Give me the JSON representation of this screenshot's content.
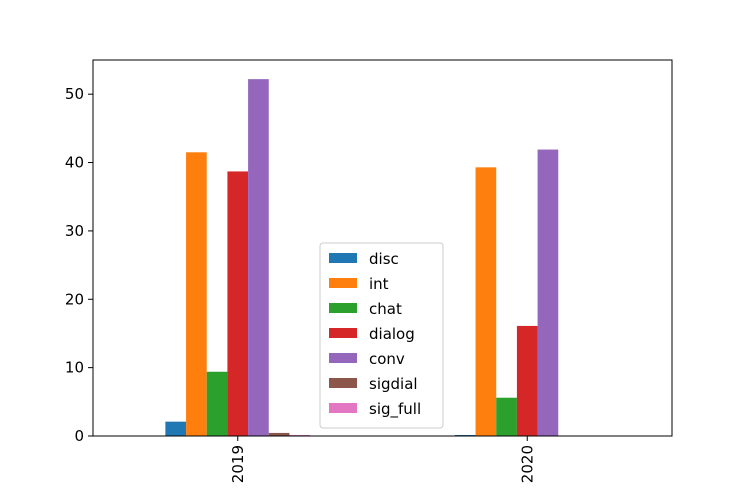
{
  "chart_data": {
    "type": "bar",
    "categories": [
      "2019",
      "2020"
    ],
    "series": [
      {
        "name": "disc",
        "color": "#1f77b4",
        "values": [
          2.1,
          0.15
        ]
      },
      {
        "name": "int",
        "color": "#ff7f0e",
        "values": [
          41.5,
          39.3
        ]
      },
      {
        "name": "chat",
        "color": "#2ca02c",
        "values": [
          9.4,
          5.6
        ]
      },
      {
        "name": "dialog",
        "color": "#d62728",
        "values": [
          38.7,
          16.1
        ]
      },
      {
        "name": "conv",
        "color": "#9467bd",
        "values": [
          52.2,
          41.9
        ]
      },
      {
        "name": "sigdial",
        "color": "#8c564b",
        "values": [
          0.45,
          0.0
        ]
      },
      {
        "name": "sig_full",
        "color": "#e377c2",
        "values": [
          0.15,
          0.0
        ]
      }
    ],
    "ylim": [
      0,
      55
    ],
    "yticks": [
      0,
      10,
      20,
      30,
      40,
      50
    ],
    "title": "",
    "xlabel": "",
    "ylabel": "",
    "grid": false,
    "legend_position": "lower-center"
  }
}
